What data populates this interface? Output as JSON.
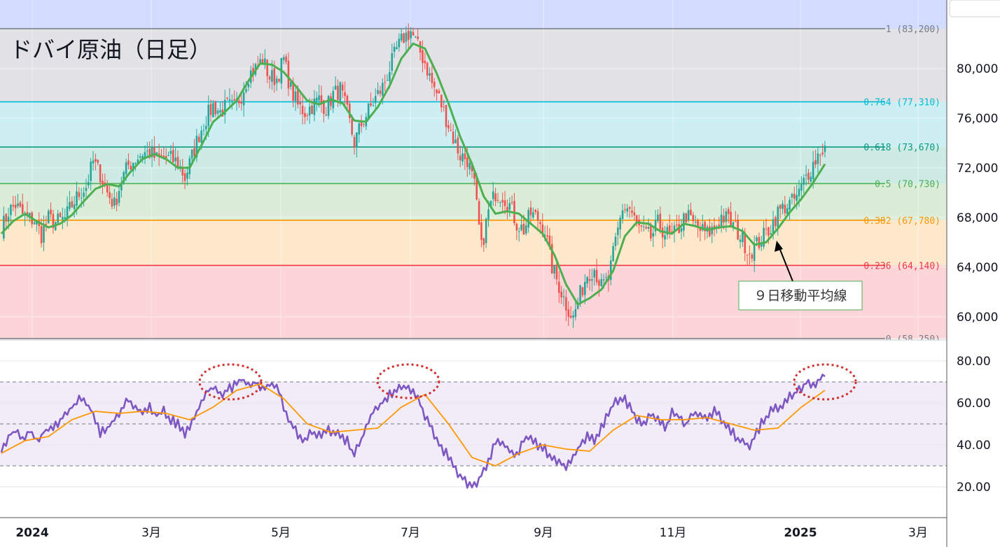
{
  "title": "ドバイ原油（日足）",
  "annotation": "９日移動平均線",
  "chart_data": [
    {
      "type": "candlestick",
      "title": "ドバイ原油（日足）",
      "y_axis_ticks": [
        "80,000",
        "76,000",
        "72,000",
        "68,000",
        "64,000",
        "60,000"
      ],
      "ylim": [
        57900,
        85550
      ],
      "x_tick_labels": [
        "2024",
        "3月",
        "5月",
        "7月",
        "9月",
        "11月",
        "2025",
        "3月"
      ],
      "fib_levels": [
        {
          "label": "1 (83,200)",
          "value": 83200,
          "color": "#787b86"
        },
        {
          "label": "0.764 (77,310)",
          "value": 77310,
          "color": "#00bcd4"
        },
        {
          "label": "0.618 (73,670)",
          "value": 73670,
          "color": "#089981"
        },
        {
          "label": "0.5 (70,730)",
          "value": 70730,
          "color": "#4caf50"
        },
        {
          "label": "0.382 (67,780)",
          "value": 67780,
          "color": "#ff9800"
        },
        {
          "label": "0.236 (64,140)",
          "value": 64140,
          "color": "#f23645"
        },
        {
          "label": "0 (58,250)",
          "value": 58250,
          "color": "#787b86"
        }
      ],
      "fib_fills": [
        "#e2e2e6",
        "#cdeff4",
        "#cdebe4",
        "#dbedd8",
        "#fde8cc",
        "#fcd5d8"
      ],
      "approx_close": [
        [
          0,
          67000
        ],
        [
          3,
          68500
        ],
        [
          6,
          69000
        ],
        [
          10,
          68000
        ],
        [
          14,
          67800
        ],
        [
          17,
          66600
        ],
        [
          20,
          67900
        ],
        [
          23,
          67600
        ],
        [
          27,
          67900
        ],
        [
          30,
          69000
        ],
        [
          33,
          69900
        ],
        [
          36,
          70500
        ],
        [
          39,
          72500
        ],
        [
          42,
          71500
        ],
        [
          45,
          70000
        ],
        [
          48,
          69000
        ],
        [
          51,
          71000
        ],
        [
          54,
          72200
        ],
        [
          57,
          72700
        ],
        [
          60,
          73200
        ],
        [
          63,
          73200
        ],
        [
          66,
          72700
        ],
        [
          69,
          72800
        ],
        [
          72,
          72700
        ],
        [
          75,
          72400
        ],
        [
          78,
          71200
        ],
        [
          81,
          72900
        ],
        [
          84,
          74700
        ],
        [
          87,
          76000
        ],
        [
          90,
          77000
        ],
        [
          93,
          76500
        ],
        [
          96,
          77000
        ],
        [
          99,
          76800
        ],
        [
          102,
          77900
        ],
        [
          105,
          79500
        ],
        [
          108,
          80000
        ],
        [
          111,
          80700
        ],
        [
          114,
          79300
        ],
        [
          117,
          79200
        ],
        [
          120,
          80700
        ],
        [
          123,
          78300
        ],
        [
          126,
          77000
        ],
        [
          129,
          76500
        ],
        [
          132,
          77000
        ],
        [
          135,
          77500
        ],
        [
          138,
          76800
        ],
        [
          141,
          77900
        ],
        [
          144,
          78300
        ],
        [
          147,
          76400
        ],
        [
          150,
          74000
        ],
        [
          153,
          75500
        ],
        [
          156,
          76600
        ],
        [
          159,
          77600
        ],
        [
          162,
          78500
        ],
        [
          165,
          80000
        ],
        [
          168,
          81500
        ],
        [
          171,
          82500
        ],
        [
          174,
          83000
        ],
        [
          177,
          81700
        ],
        [
          180,
          80500
        ],
        [
          183,
          78800
        ],
        [
          186,
          77600
        ],
        [
          189,
          76000
        ],
        [
          192,
          74400
        ],
        [
          195,
          73000
        ],
        [
          198,
          72700
        ],
        [
          201,
          70500
        ],
        [
          204,
          65500
        ],
        [
          207,
          68500
        ],
        [
          210,
          70000
        ],
        [
          213,
          69800
        ],
        [
          216,
          69000
        ],
        [
          219,
          67500
        ],
        [
          222,
          67000
        ],
        [
          225,
          68300
        ],
        [
          228,
          67900
        ],
        [
          231,
          67000
        ],
        [
          234,
          64000
        ],
        [
          237,
          62500
        ],
        [
          240,
          61000
        ],
        [
          243,
          59900
        ],
        [
          246,
          61800
        ],
        [
          249,
          63500
        ],
        [
          252,
          63900
        ],
        [
          255,
          62400
        ],
        [
          258,
          63000
        ],
        [
          261,
          66000
        ],
        [
          264,
          68800
        ],
        [
          267,
          68700
        ],
        [
          270,
          67400
        ],
        [
          273,
          66700
        ],
        [
          276,
          66400
        ],
        [
          279,
          67500
        ],
        [
          282,
          66800
        ],
        [
          285,
          66400
        ],
        [
          288,
          67200
        ],
        [
          291,
          68200
        ],
        [
          294,
          67500
        ],
        [
          297,
          67000
        ],
        [
          300,
          66700
        ],
        [
          303,
          67100
        ],
        [
          306,
          68100
        ],
        [
          309,
          67800
        ],
        [
          312,
          67100
        ],
        [
          315,
          66200
        ],
        [
          318,
          65200
        ],
        [
          321,
          65800
        ],
        [
          324,
          66500
        ],
        [
          327,
          67300
        ],
        [
          330,
          68400
        ],
        [
          333,
          68900
        ],
        [
          336,
          69200
        ],
        [
          339,
          69900
        ],
        [
          342,
          71300
        ],
        [
          345,
          72300
        ],
        [
          348,
          73400
        ],
        [
          350,
          73600
        ]
      ],
      "approx_ma9": [
        [
          0,
          66700
        ],
        [
          5,
          67700
        ],
        [
          10,
          68300
        ],
        [
          15,
          67700
        ],
        [
          20,
          67200
        ],
        [
          25,
          67500
        ],
        [
          30,
          68200
        ],
        [
          35,
          69300
        ],
        [
          40,
          70300
        ],
        [
          45,
          70700
        ],
        [
          50,
          70500
        ],
        [
          55,
          71700
        ],
        [
          60,
          72700
        ],
        [
          65,
          73100
        ],
        [
          70,
          72700
        ],
        [
          75,
          72000
        ],
        [
          80,
          72000
        ],
        [
          85,
          73800
        ],
        [
          90,
          75700
        ],
        [
          95,
          76500
        ],
        [
          100,
          77400
        ],
        [
          105,
          79000
        ],
        [
          110,
          80400
        ],
        [
          115,
          80300
        ],
        [
          120,
          79700
        ],
        [
          125,
          78600
        ],
        [
          130,
          77400
        ],
        [
          135,
          77100
        ],
        [
          140,
          77500
        ],
        [
          145,
          77200
        ],
        [
          150,
          75800
        ],
        [
          155,
          75700
        ],
        [
          160,
          76900
        ],
        [
          165,
          78600
        ],
        [
          170,
          80800
        ],
        [
          175,
          82000
        ],
        [
          180,
          81600
        ],
        [
          185,
          79600
        ],
        [
          190,
          77200
        ],
        [
          195,
          74500
        ],
        [
          200,
          72300
        ],
        [
          205,
          69700
        ],
        [
          210,
          68300
        ],
        [
          215,
          68500
        ],
        [
          220,
          68300
        ],
        [
          225,
          67500
        ],
        [
          230,
          66700
        ],
        [
          235,
          65000
        ],
        [
          240,
          62600
        ],
        [
          245,
          61000
        ],
        [
          250,
          61500
        ],
        [
          255,
          62200
        ],
        [
          260,
          63700
        ],
        [
          265,
          66500
        ],
        [
          270,
          67600
        ],
        [
          275,
          67500
        ],
        [
          280,
          66900
        ],
        [
          285,
          66700
        ],
        [
          290,
          67500
        ],
        [
          295,
          67300
        ],
        [
          300,
          67000
        ],
        [
          305,
          67200
        ],
        [
          310,
          67300
        ],
        [
          315,
          66900
        ],
        [
          320,
          65800
        ],
        [
          325,
          66000
        ],
        [
          330,
          67100
        ],
        [
          335,
          68400
        ],
        [
          340,
          69500
        ],
        [
          345,
          70800
        ],
        [
          350,
          72300
        ]
      ],
      "up_color": "#26a69a",
      "down_color": "#ef5350",
      "ma_color": "#4caf50"
    },
    {
      "type": "line",
      "panel": "RSI",
      "y_axis_ticks": [
        "80.00",
        "60.00",
        "40.00",
        "20.00"
      ],
      "ylim": [
        12,
        83
      ],
      "guide_levels": [
        70,
        50,
        30
      ],
      "rsi": [
        [
          0,
          38
        ],
        [
          3,
          44
        ],
        [
          6,
          47
        ],
        [
          9,
          42
        ],
        [
          12,
          48
        ],
        [
          15,
          41
        ],
        [
          18,
          46
        ],
        [
          21,
          48
        ],
        [
          24,
          50
        ],
        [
          27,
          55
        ],
        [
          30,
          58
        ],
        [
          33,
          62
        ],
        [
          36,
          60
        ],
        [
          39,
          55
        ],
        [
          42,
          46
        ],
        [
          45,
          48
        ],
        [
          48,
          52
        ],
        [
          51,
          57
        ],
        [
          54,
          62
        ],
        [
          57,
          58
        ],
        [
          60,
          55
        ],
        [
          63,
          58
        ],
        [
          66,
          54
        ],
        [
          69,
          56
        ],
        [
          72,
          52
        ],
        [
          75,
          50
        ],
        [
          78,
          45
        ],
        [
          81,
          50
        ],
        [
          84,
          58
        ],
        [
          87,
          65
        ],
        [
          90,
          67
        ],
        [
          93,
          64
        ],
        [
          96,
          66
        ],
        [
          99,
          68
        ],
        [
          102,
          72
        ],
        [
          105,
          68
        ],
        [
          108,
          70
        ],
        [
          111,
          66
        ],
        [
          114,
          70
        ],
        [
          117,
          68
        ],
        [
          120,
          58
        ],
        [
          123,
          50
        ],
        [
          126,
          45
        ],
        [
          129,
          42
        ],
        [
          132,
          47
        ],
        [
          135,
          44
        ],
        [
          138,
          48
        ],
        [
          141,
          46
        ],
        [
          144,
          44
        ],
        [
          147,
          42
        ],
        [
          150,
          35
        ],
        [
          153,
          43
        ],
        [
          156,
          52
        ],
        [
          159,
          57
        ],
        [
          162,
          60
        ],
        [
          165,
          64
        ],
        [
          168,
          66
        ],
        [
          171,
          68
        ],
        [
          174,
          66
        ],
        [
          177,
          62
        ],
        [
          180,
          54
        ],
        [
          183,
          48
        ],
        [
          186,
          40
        ],
        [
          189,
          36
        ],
        [
          192,
          30
        ],
        [
          195,
          25
        ],
        [
          198,
          22
        ],
        [
          201,
          20
        ],
        [
          204,
          26
        ],
        [
          207,
          32
        ],
        [
          210,
          42
        ],
        [
          213,
          40
        ],
        [
          216,
          38
        ],
        [
          219,
          35
        ],
        [
          222,
          42
        ],
        [
          225,
          44
        ],
        [
          228,
          40
        ],
        [
          231,
          38
        ],
        [
          234,
          33
        ],
        [
          237,
          32
        ],
        [
          240,
          30
        ],
        [
          243,
          35
        ],
        [
          246,
          40
        ],
        [
          249,
          44
        ],
        [
          252,
          42
        ],
        [
          255,
          48
        ],
        [
          258,
          56
        ],
        [
          261,
          60
        ],
        [
          264,
          63
        ],
        [
          267,
          58
        ],
        [
          270,
          52
        ],
        [
          273,
          49
        ],
        [
          276,
          55
        ],
        [
          279,
          52
        ],
        [
          282,
          48
        ],
        [
          285,
          55
        ],
        [
          288,
          53
        ],
        [
          291,
          50
        ],
        [
          294,
          54
        ],
        [
          297,
          55
        ],
        [
          300,
          52
        ],
        [
          303,
          56
        ],
        [
          306,
          52
        ],
        [
          309,
          48
        ],
        [
          312,
          44
        ],
        [
          315,
          42
        ],
        [
          318,
          40
        ],
        [
          321,
          46
        ],
        [
          324,
          52
        ],
        [
          327,
          56
        ],
        [
          330,
          58
        ],
        [
          333,
          60
        ],
        [
          336,
          64
        ],
        [
          339,
          66
        ],
        [
          342,
          70
        ],
        [
          345,
          68
        ],
        [
          348,
          72
        ],
        [
          350,
          73
        ]
      ],
      "rsi_ma": [
        [
          0,
          36
        ],
        [
          10,
          42
        ],
        [
          20,
          44
        ],
        [
          30,
          52
        ],
        [
          40,
          56
        ],
        [
          50,
          55
        ],
        [
          60,
          56
        ],
        [
          70,
          55
        ],
        [
          80,
          52
        ],
        [
          90,
          58
        ],
        [
          100,
          66
        ],
        [
          110,
          69
        ],
        [
          120,
          62
        ],
        [
          130,
          50
        ],
        [
          140,
          46
        ],
        [
          150,
          47
        ],
        [
          160,
          48
        ],
        [
          170,
          58
        ],
        [
          180,
          64
        ],
        [
          190,
          50
        ],
        [
          200,
          34
        ],
        [
          210,
          30
        ],
        [
          220,
          36
        ],
        [
          230,
          40
        ],
        [
          240,
          38
        ],
        [
          250,
          37
        ],
        [
          260,
          47
        ],
        [
          270,
          54
        ],
        [
          280,
          52
        ],
        [
          290,
          52
        ],
        [
          300,
          53
        ],
        [
          310,
          50
        ],
        [
          320,
          47
        ],
        [
          330,
          48
        ],
        [
          340,
          58
        ],
        [
          350,
          66
        ]
      ],
      "rsi_color": "#7e57c2",
      "rsi_ma_color": "#ff9800"
    }
  ]
}
